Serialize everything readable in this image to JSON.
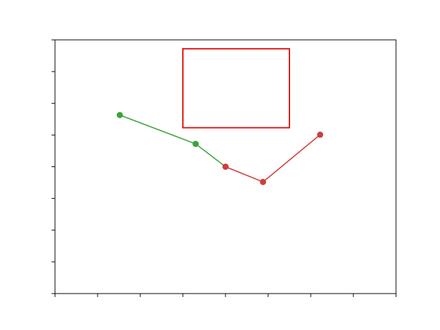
{
  "chart_data": {
    "type": "line",
    "title": "",
    "xlabel": "",
    "ylabel": "",
    "xlim": [
      0,
      8
    ],
    "ylim": [
      0,
      8
    ],
    "x_ticks": [
      0,
      1,
      2,
      3,
      4,
      5,
      6,
      7,
      8
    ],
    "y_ticks": [
      0,
      1,
      2,
      3,
      4,
      5,
      6,
      7,
      8
    ],
    "tick_labels_shown": false,
    "grid": false,
    "series": [
      {
        "color": "#3aa43a",
        "marker": "circle",
        "points": [
          {
            "x": 1.52,
            "y": 5.63
          },
          {
            "x": 3.3,
            "y": 4.72
          },
          {
            "x": 4.0,
            "y": 4.0
          }
        ]
      },
      {
        "color": "#d23c3c",
        "marker": "circle",
        "points": [
          {
            "x": 4.0,
            "y": 4.0
          },
          {
            "x": 4.88,
            "y": 3.52
          },
          {
            "x": 6.22,
            "y": 5.01
          }
        ]
      }
    ],
    "annotations": [
      {
        "type": "rectangle",
        "color": "#e31a1c",
        "x0": 3.0,
        "y0": 5.23,
        "x1": 5.5,
        "y1": 7.72
      }
    ]
  }
}
